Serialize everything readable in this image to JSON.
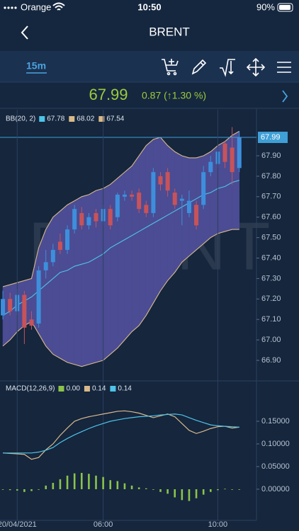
{
  "status_bar": {
    "carrier": "Orange",
    "time": "10:50",
    "battery": "90%"
  },
  "header": {
    "title": "BRENT"
  },
  "toolbar": {
    "interval": "15m"
  },
  "quote": {
    "price": "67.99",
    "change": "0.87 (↑1.30 %)"
  },
  "watermark": "BRENT",
  "chart_data": [
    {
      "type": "candlestick",
      "indicator": "BB(20, 2)",
      "x": [
        2.5,
        2.75,
        3,
        3.25,
        3.5,
        3.75,
        4,
        4.25,
        4.5,
        4.75,
        5,
        5.25,
        5.5,
        5.75,
        6,
        6.25,
        6.5,
        6.75,
        7,
        7.25,
        7.5,
        7.75,
        8,
        8.25,
        8.5,
        8.75,
        9,
        9.25,
        9.5,
        9.75,
        10,
        10.25,
        10.5,
        10.75
      ],
      "open": [
        67.12,
        67.2,
        67.14,
        67.22,
        67.1,
        67.08,
        67.34,
        67.38,
        67.48,
        67.44,
        67.54,
        67.62,
        67.56,
        67.62,
        67.58,
        67.64,
        67.6,
        67.7,
        67.71,
        67.72,
        67.66,
        67.62,
        67.8,
        67.82,
        67.72,
        67.68,
        67.62,
        67.66,
        67.66,
        67.82,
        67.86,
        67.96,
        67.94,
        67.84
      ],
      "high": [
        67.24,
        67.23,
        67.25,
        67.24,
        67.14,
        67.36,
        67.44,
        67.47,
        67.52,
        67.56,
        67.66,
        67.65,
        67.62,
        67.64,
        67.66,
        67.66,
        67.72,
        67.73,
        67.73,
        67.74,
        67.68,
        67.84,
        67.82,
        67.84,
        67.74,
        67.71,
        67.73,
        67.68,
        67.85,
        67.9,
        67.95,
        67.97,
        68.04,
        68.02
      ],
      "low": [
        67.1,
        67.12,
        67.12,
        66.98,
        67.05,
        67.06,
        67.3,
        67.36,
        67.42,
        67.42,
        67.52,
        67.54,
        67.54,
        67.55,
        67.56,
        67.54,
        67.58,
        67.68,
        67.68,
        67.62,
        67.6,
        67.6,
        67.73,
        67.7,
        67.64,
        67.56,
        67.6,
        67.54,
        67.64,
        67.8,
        67.84,
        67.84,
        67.76,
        67.82
      ],
      "close": [
        67.2,
        67.14,
        67.22,
        67.06,
        67.07,
        67.34,
        67.38,
        67.44,
        67.44,
        67.54,
        67.64,
        67.56,
        67.6,
        67.58,
        67.64,
        67.56,
        67.71,
        67.71,
        67.7,
        67.64,
        67.62,
        67.82,
        67.76,
        67.73,
        67.66,
        67.69,
        67.68,
        67.56,
        67.82,
        67.87,
        67.92,
        67.87,
        67.82,
        67.99
      ],
      "up_color": "#3d8fdc",
      "down_color": "#c7535a",
      "band_fill": "#4b4c93",
      "last_color": "#3f9fd6",
      "series": [
        {
          "color": "#4fc3e8",
          "values": [
            67.12,
            67.14,
            67.17,
            67.19,
            67.21,
            67.24,
            67.27,
            67.3,
            67.33,
            67.34,
            67.36,
            67.37,
            67.38,
            67.4,
            67.42,
            67.45,
            67.47,
            67.49,
            67.51,
            67.53,
            67.55,
            67.57,
            67.59,
            67.61,
            67.63,
            67.65,
            67.67,
            67.69,
            67.71,
            67.72,
            67.74,
            67.75,
            67.77,
            67.78
          ]
        },
        {
          "color": "#d9b98a",
          "values": [
            67.26,
            67.27,
            67.28,
            67.29,
            67.3,
            67.45,
            67.54,
            67.6,
            67.63,
            67.66,
            67.68,
            67.7,
            67.71,
            67.73,
            67.74,
            67.76,
            67.79,
            67.82,
            67.85,
            67.9,
            67.95,
            67.98,
            67.99,
            67.95,
            67.92,
            67.9,
            67.89,
            67.89,
            67.9,
            67.92,
            67.95,
            67.97,
            68.0,
            68.02
          ]
        },
        {
          "color": "#d9b98a",
          "values": [
            66.97,
            67.0,
            67.04,
            67.07,
            67.09,
            67.03,
            66.97,
            66.93,
            66.91,
            66.89,
            66.88,
            66.87,
            66.88,
            66.89,
            66.9,
            66.93,
            66.96,
            67.0,
            67.04,
            67.07,
            67.12,
            67.18,
            67.24,
            67.29,
            67.33,
            67.38,
            67.41,
            67.44,
            67.47,
            67.5,
            67.52,
            67.53,
            67.54,
            67.54
          ]
        }
      ],
      "xlim": [
        2.4,
        11.35
      ],
      "ylim": [
        66.81,
        68.125
      ],
      "yticks": [
        {
          "value": 67.9,
          "label": "67.90"
        },
        {
          "value": 67.8,
          "label": "67.80"
        },
        {
          "value": 67.7,
          "label": "67.70"
        },
        {
          "value": 67.6,
          "label": "67.60"
        },
        {
          "value": 67.5,
          "label": "67.50"
        },
        {
          "value": 67.4,
          "label": "67.40"
        },
        {
          "value": 67.3,
          "label": "67.30"
        },
        {
          "value": 67.2,
          "label": "67.20"
        },
        {
          "value": 67.1,
          "label": "67.10"
        },
        {
          "value": 67,
          "label": "67.00"
        },
        {
          "value": 66.9,
          "label": "66.90"
        }
      ]
    },
    {
      "type": "macd",
      "indicator": "MACD(12,26,9)",
      "x": [
        2.5,
        2.75,
        3,
        3.25,
        3.5,
        3.75,
        4,
        4.25,
        4.5,
        4.75,
        5,
        5.25,
        5.5,
        5.75,
        6,
        6.25,
        6.5,
        6.75,
        7,
        7.25,
        7.5,
        7.75,
        8,
        8.25,
        8.5,
        8.75,
        9,
        9.25,
        9.5,
        9.75,
        10,
        10.25,
        10.5,
        10.75
      ],
      "series": [
        {
          "style": "bars",
          "color": "#8bc34a",
          "readout": {
            "value": 0,
            "label": "0.00"
          },
          "values": [
            0,
            -0.002,
            -0.003,
            -0.006,
            -0.004,
            0,
            0.008,
            0.014,
            0.022,
            0.03,
            0.035,
            0.036,
            0.034,
            0.03,
            0.027,
            0.02,
            0.018,
            0.013,
            0.008,
            0.004,
            0.002,
            -0.001,
            -0.006,
            -0.01,
            -0.018,
            -0.024,
            -0.026,
            -0.02,
            -0.012,
            -0.006,
            -0.002,
            0.001,
            -0.001,
            0
          ]
        },
        {
          "style": "line",
          "color": "#d9b98a",
          "readout": 0.14,
          "values": [
            0.08,
            0.079,
            0.078,
            0.077,
            0.066,
            0.07,
            0.087,
            0.1,
            0.119,
            0.135,
            0.15,
            0.156,
            0.16,
            0.163,
            0.166,
            0.169,
            0.172,
            0.173,
            0.171,
            0.168,
            0.163,
            0.158,
            0.162,
            0.166,
            0.16,
            0.145,
            0.13,
            0.123,
            0.128,
            0.134,
            0.138,
            0.139,
            0.135,
            0.137
          ]
        },
        {
          "style": "line",
          "color": "#4fc3e8",
          "readout": 0.14,
          "values": [
            0.08,
            0.08,
            0.08,
            0.08,
            0.08,
            0.082,
            0.086,
            0.092,
            0.103,
            0.112,
            0.12,
            0.127,
            0.134,
            0.14,
            0.145,
            0.15,
            0.153,
            0.156,
            0.158,
            0.16,
            0.161,
            0.162,
            0.164,
            0.165,
            0.166,
            0.164,
            0.158,
            0.152,
            0.147,
            0.142,
            0.14,
            0.139,
            0.138,
            0.137
          ]
        }
      ],
      "xlim": [
        2.4,
        11.35
      ],
      "ylim": [
        -0.0688,
        0.2016
      ],
      "yticks": [
        {
          "value": 0.15,
          "label": "0.15000"
        },
        {
          "value": 0.1,
          "label": "0.10000"
        },
        {
          "value": 0.05,
          "label": "0.05000"
        },
        {
          "value": 0,
          "label": "0.00000"
        }
      ],
      "xticks": [
        {
          "value": 3,
          "label": "20/04/2021"
        },
        {
          "value": 6,
          "label": "06:00"
        },
        {
          "value": 10,
          "label": "10:00"
        }
      ]
    }
  ]
}
